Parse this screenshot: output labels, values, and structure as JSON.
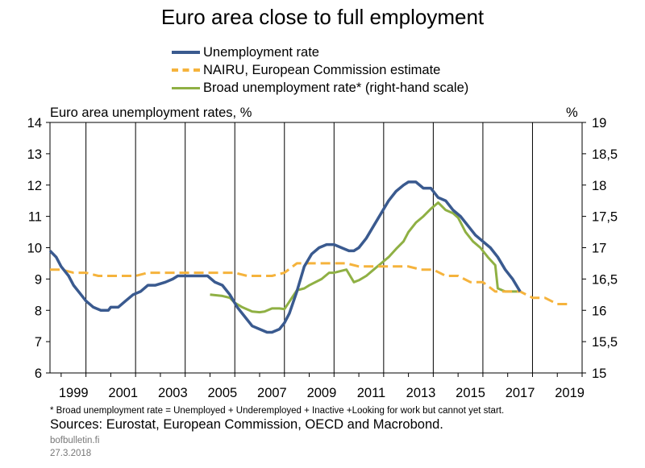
{
  "page": {
    "source_note": "Sources: Eurostat, European Commission, OECD and Macrobond.",
    "footnote": "* Broad unemployment rate = Unemployed + Underemployed + Inactive +Looking for work but cannot yet start.",
    "site": "bofbulletin.fi",
    "date": "27.3.2018"
  },
  "chart_data": {
    "type": "line",
    "title": "Euro area close to full employment",
    "ylabel": "Euro area unemployment rates, %",
    "y2label": "%",
    "xlim": [
      1998.55,
      2020.0
    ],
    "ylim": [
      6,
      14
    ],
    "y2lim": [
      15,
      19
    ],
    "yticks": [
      "6",
      "7",
      "8",
      "9",
      "10",
      "11",
      "12",
      "13",
      "14"
    ],
    "y2ticks": [
      "15",
      "15,5",
      "16",
      "16,5",
      "17",
      "17,5",
      "18",
      "18,5",
      "19"
    ],
    "xticks": [
      "1999",
      "2001",
      "2003",
      "2005",
      "2007",
      "2009",
      "2011",
      "2013",
      "2015",
      "2017",
      "2019"
    ],
    "grid": "vertical",
    "legend_position": "top",
    "series": [
      {
        "name": "Unemployment rate",
        "axis": "left",
        "color": "#3a5a8f",
        "style": "solid",
        "x": [
          1998.55,
          1998.8,
          1999.0,
          1999.3,
          1999.5,
          1999.8,
          2000.0,
          2000.3,
          2000.6,
          2000.9,
          2001.0,
          2001.3,
          2001.6,
          2001.9,
          2002.2,
          2002.5,
          2002.8,
          2003.2,
          2003.5,
          2003.7,
          2004.0,
          2004.3,
          2004.6,
          2004.9,
          2005.2,
          2005.5,
          2005.8,
          2006.1,
          2006.4,
          2006.7,
          2007.0,
          2007.3,
          2007.5,
          2007.8,
          2008.0,
          2008.2,
          2008.5,
          2008.8,
          2009.1,
          2009.4,
          2009.7,
          2010.0,
          2010.3,
          2010.6,
          2010.8,
          2011.0,
          2011.3,
          2011.6,
          2011.9,
          2012.2,
          2012.5,
          2012.8,
          2013.0,
          2013.3,
          2013.6,
          2013.9,
          2014.2,
          2014.5,
          2014.8,
          2015.1,
          2015.4,
          2015.7,
          2016.0,
          2016.3,
          2016.6,
          2016.9,
          2017.2,
          2017.5
        ],
        "y": [
          9.9,
          9.7,
          9.4,
          9.1,
          8.8,
          8.5,
          8.3,
          8.1,
          8.0,
          8.0,
          8.1,
          8.1,
          8.3,
          8.5,
          8.6,
          8.8,
          8.8,
          8.9,
          9.0,
          9.1,
          9.1,
          9.1,
          9.1,
          9.1,
          8.9,
          8.8,
          8.5,
          8.1,
          7.8,
          7.5,
          7.4,
          7.3,
          7.3,
          7.4,
          7.6,
          7.9,
          8.6,
          9.4,
          9.8,
          10.0,
          10.1,
          10.1,
          10.0,
          9.9,
          9.9,
          10.0,
          10.3,
          10.7,
          11.1,
          11.5,
          11.8,
          12.0,
          12.1,
          12.1,
          11.9,
          11.9,
          11.6,
          11.5,
          11.2,
          11.0,
          10.7,
          10.4,
          10.2,
          10.0,
          9.7,
          9.3,
          9.0,
          8.6
        ]
      },
      {
        "name": "NAIRU, European Commission estimate",
        "axis": "left",
        "color": "#f5b33c",
        "style": "dashed",
        "x": [
          1998.55,
          1999.0,
          1999.5,
          2000.0,
          2000.5,
          2001.0,
          2001.5,
          2002.0,
          2002.5,
          2003.0,
          2003.5,
          2004.0,
          2004.5,
          2005.0,
          2005.5,
          2006.0,
          2006.5,
          2007.0,
          2007.5,
          2008.0,
          2008.5,
          2009.0,
          2009.5,
          2010.0,
          2010.5,
          2011.0,
          2011.5,
          2012.0,
          2012.5,
          2013.0,
          2013.5,
          2014.0,
          2014.5,
          2015.0,
          2015.5,
          2016.0,
          2016.5,
          2017.0,
          2017.5,
          2018.0,
          2018.5,
          2019.0,
          2019.5
        ],
        "y": [
          9.3,
          9.3,
          9.2,
          9.2,
          9.1,
          9.1,
          9.1,
          9.1,
          9.2,
          9.2,
          9.2,
          9.2,
          9.2,
          9.2,
          9.2,
          9.2,
          9.1,
          9.1,
          9.1,
          9.2,
          9.5,
          9.5,
          9.5,
          9.5,
          9.5,
          9.4,
          9.4,
          9.4,
          9.4,
          9.4,
          9.3,
          9.3,
          9.1,
          9.1,
          8.9,
          8.9,
          8.6,
          8.6,
          8.6,
          8.4,
          8.4,
          8.2,
          8.2
        ]
      },
      {
        "name": "Broad unemployment rate* (right-hand scale)",
        "axis": "right",
        "color": "#8fb044",
        "style": "solid",
        "x": [
          2005.0,
          2005.5,
          2005.8,
          2006.0,
          2006.3,
          2006.7,
          2007.0,
          2007.2,
          2007.5,
          2007.8,
          2008.0,
          2008.5,
          2008.8,
          2009.0,
          2009.5,
          2009.8,
          2010.0,
          2010.5,
          2010.8,
          2011.0,
          2011.3,
          2011.6,
          2011.9,
          2012.2,
          2012.5,
          2012.8,
          2013.0,
          2013.3,
          2013.6,
          2013.9,
          2014.2,
          2014.5,
          2014.8,
          2015.0,
          2015.3,
          2015.6,
          2015.9,
          2016.2,
          2016.5,
          2016.6,
          2016.9,
          2017.1,
          2017.5
        ],
        "y": [
          16.25,
          16.23,
          16.2,
          16.12,
          16.05,
          15.98,
          15.97,
          15.98,
          16.03,
          16.03,
          16.02,
          16.32,
          16.35,
          16.4,
          16.5,
          16.6,
          16.6,
          16.65,
          16.45,
          16.48,
          16.55,
          16.65,
          16.75,
          16.85,
          16.98,
          17.1,
          17.25,
          17.4,
          17.5,
          17.62,
          17.72,
          17.6,
          17.55,
          17.48,
          17.25,
          17.1,
          17.0,
          16.85,
          16.72,
          16.35,
          16.3,
          16.3,
          16.3
        ]
      }
    ]
  }
}
